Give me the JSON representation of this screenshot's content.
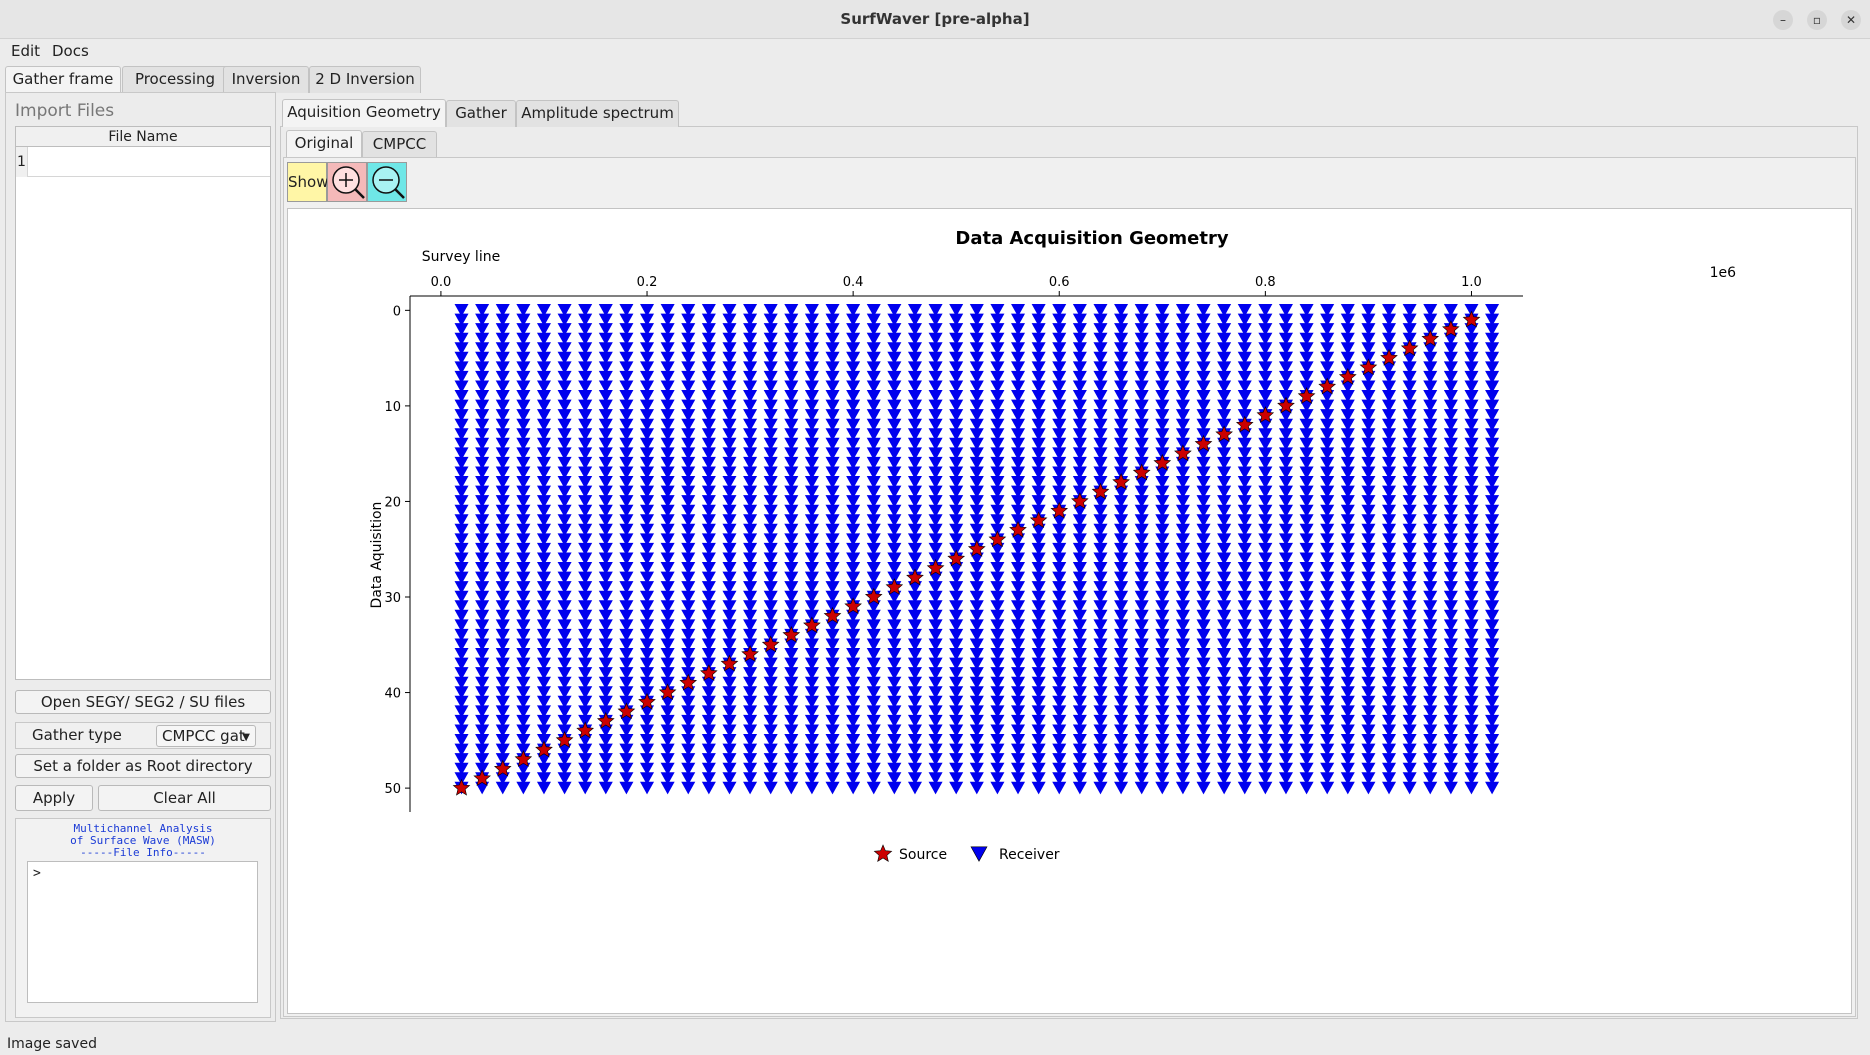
{
  "window": {
    "title": "SurfWaver [pre-alpha]",
    "minimize": "–",
    "restore": "▫",
    "close": "✕"
  },
  "menubar": {
    "items": [
      "Edit",
      "Docs"
    ]
  },
  "main_tabs": [
    "Gather frame",
    "Processing",
    "Inversion",
    "2 D Inversion"
  ],
  "left": {
    "import_label": "Import  Files",
    "file_table": {
      "header": "File Name",
      "rows": [
        {
          "num": "1",
          "name": ""
        }
      ]
    },
    "open_button": "Open SEGY/ SEG2 / SU files",
    "gather_type_label": "Gather type",
    "gather_type_value": "CMPCC gat",
    "root_button": "Set a folder as Root directory",
    "apply_button": "Apply",
    "clear_button": "Clear All",
    "info_lines": [
      "Multichannel Analysis",
      "of Surface Wave (MASW)",
      "-----File Info-----"
    ],
    "console_text": ">"
  },
  "plot_tabs": [
    "Aquisition Geometry",
    "Gather",
    "Amplitude spectrum"
  ],
  "view_tabs": [
    "Original",
    "CMPCC"
  ],
  "toolbar": {
    "show_label": "Show",
    "zoom_in_icon": "zoom-in-icon",
    "zoom_out_icon": "zoom-out-icon"
  },
  "statusbar": {
    "text": "Image saved"
  },
  "chart_data": {
    "type": "scatter",
    "title": "Data Acquisition Geometry",
    "xlabel": "Survey line",
    "ylabel": "Data Aquisition",
    "x_offset_text": "1e6",
    "x_ticks": [
      "0.0",
      "0.2",
      "0.4",
      "0.6",
      "0.8",
      "1.0"
    ],
    "y_ticks": [
      "0",
      "10",
      "20",
      "30",
      "40",
      "50"
    ],
    "xlim": [
      -0.03,
      1.05
    ],
    "ylim": [
      52.5,
      -1.5
    ],
    "y_inverted": true,
    "x_axis_position": "top",
    "series": [
      {
        "name": "Source",
        "marker": "star",
        "color": "#cc0000",
        "x_start": 0.02,
        "x_step": 0.02,
        "y_start": 50,
        "y_step": -1,
        "count": 50
      },
      {
        "name": "Receiver",
        "marker": "triangle-down",
        "color": "#0000ee",
        "x_start": 0.02,
        "x_step": 0.02,
        "x_count": 51,
        "y_start": 0,
        "y_step": 1,
        "y_count": 51
      }
    ],
    "legend_position": "bottom-center"
  }
}
